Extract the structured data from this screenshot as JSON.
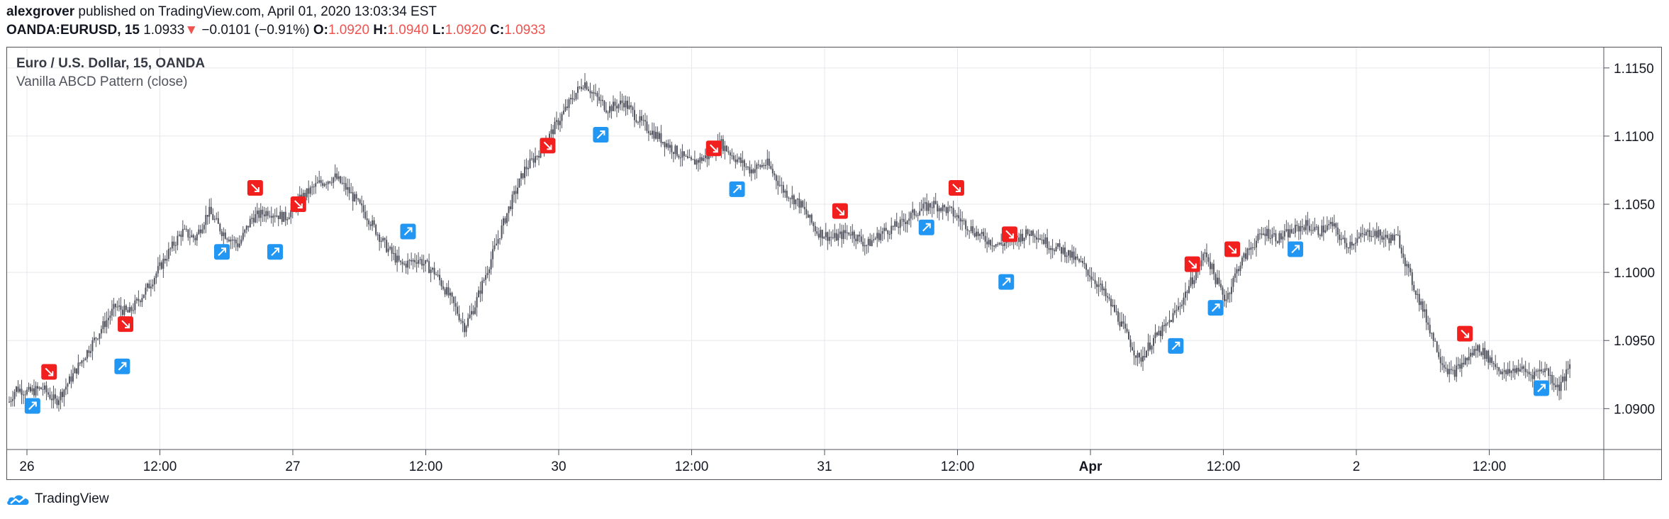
{
  "header": {
    "author": "alexgrover",
    "published_text": "published on TradingView.com, April 01, 2020 13:03:34 EST",
    "symbol": "OANDA:EURUSD, 15",
    "last_price": "1.0933",
    "change_arrow": "▼",
    "change": "−0.0101 (−0.91%)",
    "open_label": "O:",
    "open": "1.0920",
    "high_label": "H:",
    "high": "1.0940",
    "low_label": "L:",
    "low": "1.0920",
    "close_label": "C:",
    "close": "1.0933"
  },
  "legend": {
    "title": "Euro / U.S. Dollar, 15, OANDA",
    "indicator": "Vanilla ABCD Pattern (close)"
  },
  "footer": {
    "brand": "TradingView",
    "logo_icon": "tradingview-cloud-icon"
  },
  "colors": {
    "up_signal": "#2196f3",
    "down_signal": "#f21f1f",
    "candle": "#50535e",
    "negative": "#ef5350",
    "grid": "#e6e8ee"
  },
  "chart_data": {
    "type": "candlestick",
    "grid": true,
    "ylim": [
      1.087,
      1.1165
    ],
    "y_ticks": [
      1.09,
      1.095,
      1.1,
      1.105,
      1.11,
      1.115
    ],
    "y_tick_labels": [
      "1.0900",
      "1.0950",
      "1.1000",
      "1.1050",
      "1.1100",
      "1.1150"
    ],
    "x_ticks": [
      {
        "label": "26",
        "bold": false
      },
      {
        "label": "12:00",
        "bold": false
      },
      {
        "label": "27",
        "bold": false
      },
      {
        "label": "12:00",
        "bold": false
      },
      {
        "label": "30",
        "bold": false
      },
      {
        "label": "12:00",
        "bold": false
      },
      {
        "label": "31",
        "bold": false
      },
      {
        "label": "12:00",
        "bold": false
      },
      {
        "label": "Apr",
        "bold": true
      },
      {
        "label": "12:00",
        "bold": false
      },
      {
        "label": "2",
        "bold": false
      },
      {
        "label": "12:00",
        "bold": false
      }
    ],
    "price_path": [
      [
        0,
        1.0905
      ],
      [
        0.2,
        1.0915
      ],
      [
        0.6,
        1.0912
      ],
      [
        1.0,
        1.0915
      ],
      [
        1.4,
        1.0905
      ],
      [
        1.8,
        1.092
      ],
      [
        2.3,
        1.094
      ],
      [
        2.8,
        1.096
      ],
      [
        3.2,
        1.0975
      ],
      [
        3.6,
        1.097
      ],
      [
        4.2,
        1.099
      ],
      [
        4.8,
        1.1015
      ],
      [
        5.2,
        1.103
      ],
      [
        5.6,
        1.1025
      ],
      [
        6.0,
        1.1045
      ],
      [
        6.4,
        1.103
      ],
      [
        6.9,
        1.102
      ],
      [
        7.3,
        1.104
      ],
      [
        7.8,
        1.1045
      ],
      [
        8.3,
        1.104
      ],
      [
        8.8,
        1.1055
      ],
      [
        9.3,
        1.1065
      ],
      [
        9.8,
        1.107
      ],
      [
        10.2,
        1.106
      ],
      [
        10.8,
        1.104
      ],
      [
        11.3,
        1.102
      ],
      [
        11.8,
        1.1005
      ],
      [
        12.3,
        1.101
      ],
      [
        12.8,
        1.1
      ],
      [
        13.3,
        1.098
      ],
      [
        13.7,
        1.096
      ],
      [
        14.0,
        1.0975
      ],
      [
        14.5,
        1.101
      ],
      [
        15.0,
        1.1045
      ],
      [
        15.5,
        1.1075
      ],
      [
        16.0,
        1.109
      ],
      [
        16.5,
        1.111
      ],
      [
        17.0,
        1.113
      ],
      [
        17.3,
        1.114
      ],
      [
        17.6,
        1.113
      ],
      [
        18.0,
        1.112
      ],
      [
        18.5,
        1.1125
      ],
      [
        19.0,
        1.111
      ],
      [
        19.5,
        1.11
      ],
      [
        20.0,
        1.109
      ],
      [
        20.5,
        1.108
      ],
      [
        21.0,
        1.1085
      ],
      [
        21.4,
        1.1095
      ],
      [
        21.8,
        1.1085
      ],
      [
        22.3,
        1.1075
      ],
      [
        22.8,
        1.108
      ],
      [
        23.3,
        1.106
      ],
      [
        23.8,
        1.105
      ],
      [
        24.3,
        1.103
      ],
      [
        24.8,
        1.1025
      ],
      [
        25.3,
        1.103
      ],
      [
        25.8,
        1.102
      ],
      [
        26.3,
        1.103
      ],
      [
        26.8,
        1.1035
      ],
      [
        27.3,
        1.1045
      ],
      [
        27.8,
        1.105
      ],
      [
        28.3,
        1.1045
      ],
      [
        28.8,
        1.1035
      ],
      [
        29.3,
        1.1025
      ],
      [
        29.8,
        1.102
      ],
      [
        30.3,
        1.1025
      ],
      [
        30.8,
        1.103
      ],
      [
        31.3,
        1.102
      ],
      [
        31.8,
        1.1015
      ],
      [
        32.3,
        1.1005
      ],
      [
        32.8,
        1.099
      ],
      [
        33.3,
        1.097
      ],
      [
        33.7,
        1.095
      ],
      [
        34.0,
        1.0935
      ],
      [
        34.4,
        1.095
      ],
      [
        34.8,
        1.096
      ],
      [
        35.2,
        1.0975
      ],
      [
        35.6,
        1.0995
      ],
      [
        36.0,
        1.1015
      ],
      [
        36.3,
        1.0995
      ],
      [
        36.6,
        1.098
      ],
      [
        37.0,
        1.1005
      ],
      [
        37.4,
        1.102
      ],
      [
        37.8,
        1.103
      ],
      [
        38.2,
        1.1025
      ],
      [
        38.6,
        1.103
      ],
      [
        39.0,
        1.1035
      ],
      [
        39.4,
        1.103
      ],
      [
        39.8,
        1.1035
      ],
      [
        40.2,
        1.102
      ],
      [
        40.6,
        1.1025
      ],
      [
        41.0,
        1.103
      ],
      [
        41.4,
        1.1025
      ],
      [
        41.8,
        1.1025
      ],
      [
        42.1,
        1.1
      ],
      [
        42.5,
        1.0975
      ],
      [
        42.8,
        1.0955
      ],
      [
        43.1,
        1.0935
      ],
      [
        43.4,
        1.0925
      ],
      [
        43.8,
        1.0935
      ],
      [
        44.2,
        1.0945
      ],
      [
        44.6,
        1.0935
      ],
      [
        45.0,
        1.0925
      ],
      [
        45.4,
        1.093
      ],
      [
        45.8,
        1.0925
      ],
      [
        46.2,
        1.093
      ],
      [
        46.6,
        1.0915
      ],
      [
        46.85,
        1.0925
      ],
      [
        47.0,
        1.0933
      ]
    ],
    "signals": [
      {
        "x": 0.7,
        "y": 1.0902,
        "dir": "up"
      },
      {
        "x": 1.2,
        "y": 1.0927,
        "dir": "down"
      },
      {
        "x": 3.4,
        "y": 1.0931,
        "dir": "up"
      },
      {
        "x": 3.5,
        "y": 1.0962,
        "dir": "down"
      },
      {
        "x": 6.4,
        "y": 1.1015,
        "dir": "up"
      },
      {
        "x": 7.4,
        "y": 1.1062,
        "dir": "down"
      },
      {
        "x": 8.0,
        "y": 1.1015,
        "dir": "up"
      },
      {
        "x": 8.7,
        "y": 1.105,
        "dir": "down"
      },
      {
        "x": 12.0,
        "y": 1.103,
        "dir": "up"
      },
      {
        "x": 16.2,
        "y": 1.1093,
        "dir": "down"
      },
      {
        "x": 17.8,
        "y": 1.1101,
        "dir": "up"
      },
      {
        "x": 21.2,
        "y": 1.1091,
        "dir": "down"
      },
      {
        "x": 21.9,
        "y": 1.1061,
        "dir": "up"
      },
      {
        "x": 25.0,
        "y": 1.1045,
        "dir": "down"
      },
      {
        "x": 27.6,
        "y": 1.1033,
        "dir": "up"
      },
      {
        "x": 28.5,
        "y": 1.1062,
        "dir": "down"
      },
      {
        "x": 30.0,
        "y": 1.0993,
        "dir": "up"
      },
      {
        "x": 30.1,
        "y": 1.1028,
        "dir": "down"
      },
      {
        "x": 35.1,
        "y": 1.0946,
        "dir": "up"
      },
      {
        "x": 35.6,
        "y": 1.1006,
        "dir": "down"
      },
      {
        "x": 36.3,
        "y": 1.0974,
        "dir": "up"
      },
      {
        "x": 36.8,
        "y": 1.1017,
        "dir": "down"
      },
      {
        "x": 38.7,
        "y": 1.1017,
        "dir": "up"
      },
      {
        "x": 43.8,
        "y": 1.0955,
        "dir": "down"
      },
      {
        "x": 46.1,
        "y": 1.0915,
        "dir": "up"
      }
    ]
  }
}
